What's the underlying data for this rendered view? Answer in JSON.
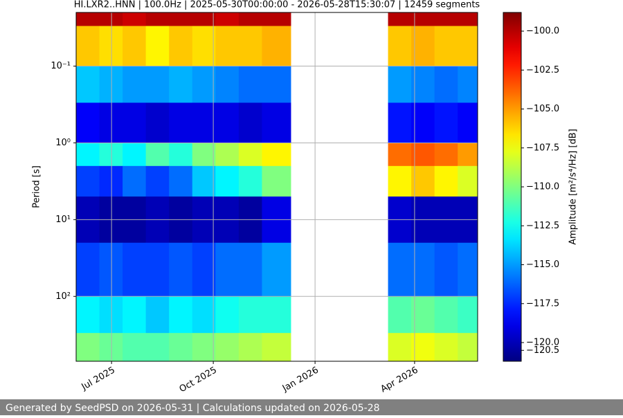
{
  "chart_data": {
    "type": "heatmap",
    "title": "HI.LXR2..HNN | 100.0Hz | 2025-05-30T00:00:00 - 2026-05-28T15:30:07 | 12459 segments",
    "y_label": "Period [s]",
    "colorbar_label": "Amplitude [m²/s⁴/Hz] [dB]",
    "colormap": "jet",
    "log_y": true,
    "y_inverted": true,
    "grid": true,
    "xlim": [
      "2025-05-30",
      "2026-05-28"
    ],
    "xticks": [
      {
        "value": "2025-07-01",
        "label": "Jul 2025"
      },
      {
        "value": "2025-10-01",
        "label": "Oct 2025"
      },
      {
        "value": "2026-01-01",
        "label": "Jan 2026"
      },
      {
        "value": "2026-04-01",
        "label": "Apr 2026"
      }
    ],
    "ylim": [
      0.02,
      700
    ],
    "yticks": [
      {
        "value": 0.1,
        "label": "10⁻¹"
      },
      {
        "value": 1,
        "label": "10⁰"
      },
      {
        "value": 10,
        "label": "10¹"
      },
      {
        "value": 100,
        "label": "10²"
      }
    ],
    "clim": [
      -121.2,
      -98.8
    ],
    "cticks": [
      {
        "value": -100,
        "label": "−100.0"
      },
      {
        "value": -102.5,
        "label": "−102.5"
      },
      {
        "value": -105,
        "label": "−105.0"
      },
      {
        "value": -107.5,
        "label": "−107.5"
      },
      {
        "value": -110,
        "label": "−110.0"
      },
      {
        "value": -112.5,
        "label": "−112.5"
      },
      {
        "value": -115,
        "label": "−115.0"
      },
      {
        "value": -117.5,
        "label": "−117.5"
      },
      {
        "value": -120,
        "label": "−120.0"
      },
      {
        "value": -120.5,
        "label": "−120.5"
      }
    ],
    "x_edges": [
      "2025-05-30",
      "2025-06-20",
      "2025-07-11",
      "2025-08-01",
      "2025-08-22",
      "2025-09-12",
      "2025-10-03",
      "2025-10-24",
      "2025-11-14",
      "2025-12-10",
      "2026-03-08",
      "2026-03-29",
      "2026-04-19",
      "2026-05-10",
      "2026-05-28"
    ],
    "y_edges": [
      0.02,
      0.03,
      0.1,
      0.3,
      1,
      2,
      5,
      20,
      100,
      300,
      700
    ],
    "z": [
      [
        -100,
        -100,
        -100.5,
        -100,
        -100,
        -100,
        -100.5,
        -100,
        -100,
        null,
        -100,
        -100,
        -100,
        -100
      ],
      [
        -106,
        -106.5,
        -106,
        -107,
        -106,
        -106.5,
        -106,
        -106,
        -105.5,
        null,
        -106,
        -105.5,
        -106,
        -106
      ],
      [
        -114,
        -114.5,
        -115,
        -115,
        -114.5,
        -115,
        -115.5,
        -116,
        -116,
        null,
        -115,
        -115.5,
        -116,
        -115.5
      ],
      [
        -118.5,
        -119,
        -119,
        -119.5,
        -119,
        -119,
        -119,
        -119.5,
        -119,
        null,
        -118,
        -118.5,
        -118,
        -118.5
      ],
      [
        -113,
        -112,
        -113,
        -111,
        -112,
        -110,
        -109,
        -108,
        -107,
        null,
        -104,
        -103.5,
        -104,
        -105
      ],
      [
        -117,
        -117.5,
        -116,
        -117,
        -116,
        -114,
        -113,
        -112,
        -110,
        null,
        -107,
        -106,
        -107,
        -108
      ],
      [
        -120,
        -120.5,
        -120.5,
        -120,
        -120.5,
        -120,
        -120,
        -120.5,
        -119,
        null,
        -119.5,
        -120,
        -120,
        -120
      ],
      [
        -117,
        -116.5,
        -117,
        -117,
        -116.5,
        -117,
        -116,
        -116,
        -115,
        null,
        -116,
        -116,
        -116.5,
        -116
      ],
      [
        -113,
        -113.5,
        -113,
        -114,
        -113,
        -113.5,
        -112.5,
        -112,
        -112,
        null,
        -111,
        -110.5,
        -111,
        -111.5
      ],
      [
        -110,
        -110.5,
        -111,
        -111,
        -110.5,
        -110,
        -109.5,
        -109,
        -108.5,
        null,
        -108,
        -107.5,
        -108,
        -108.5
      ]
    ]
  },
  "footer": "Generated by SeedPSD on 2026-05-31 | Calculations updated on 2026-05-28"
}
